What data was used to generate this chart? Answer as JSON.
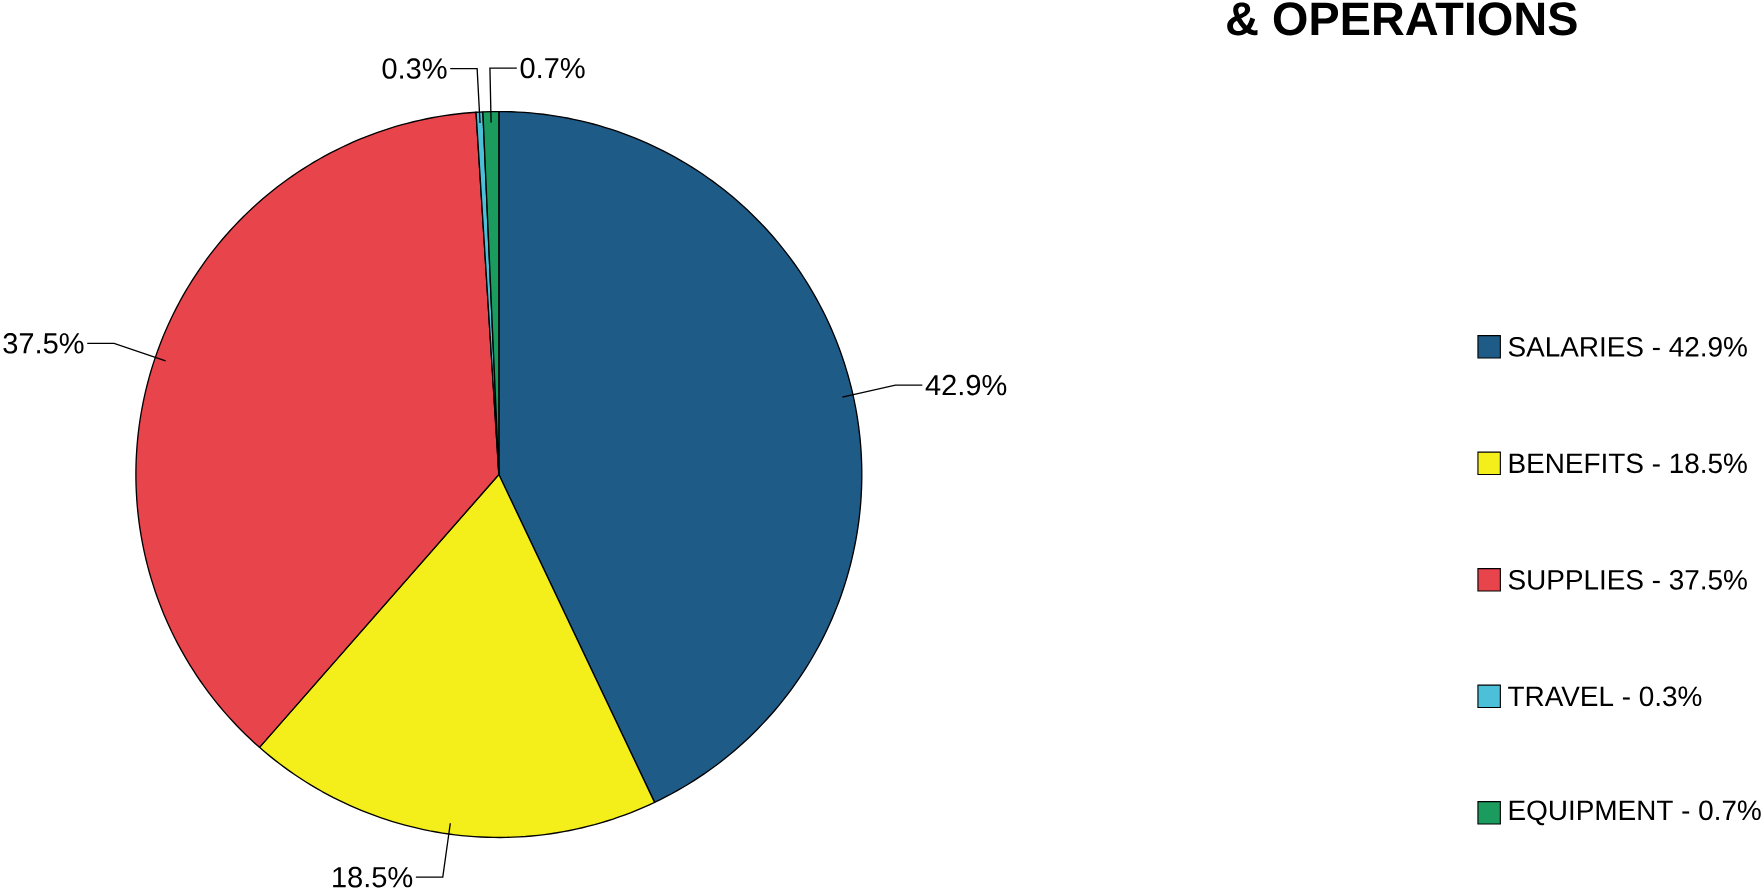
{
  "chart_data": {
    "type": "pie",
    "title": "& OPERATIONS",
    "categories": [
      "SALARIES - 42.9%",
      "BENEFITS - 18.5%",
      "SUPPLIES - 37.5%",
      "TRAVEL - 0.3%",
      "EQUIPMENT - 0.7%"
    ],
    "values": [
      42.9,
      18.5,
      37.5,
      0.3,
      0.7
    ],
    "value_labels": [
      "42.9%",
      "18.5%",
      "37.5%",
      "0.3%",
      "0.7%"
    ],
    "colors": [
      "#1f5b87",
      "#f4ee1a",
      "#e8444b",
      "#4cbfd9",
      "#1b9b5e"
    ],
    "legend": "right"
  }
}
